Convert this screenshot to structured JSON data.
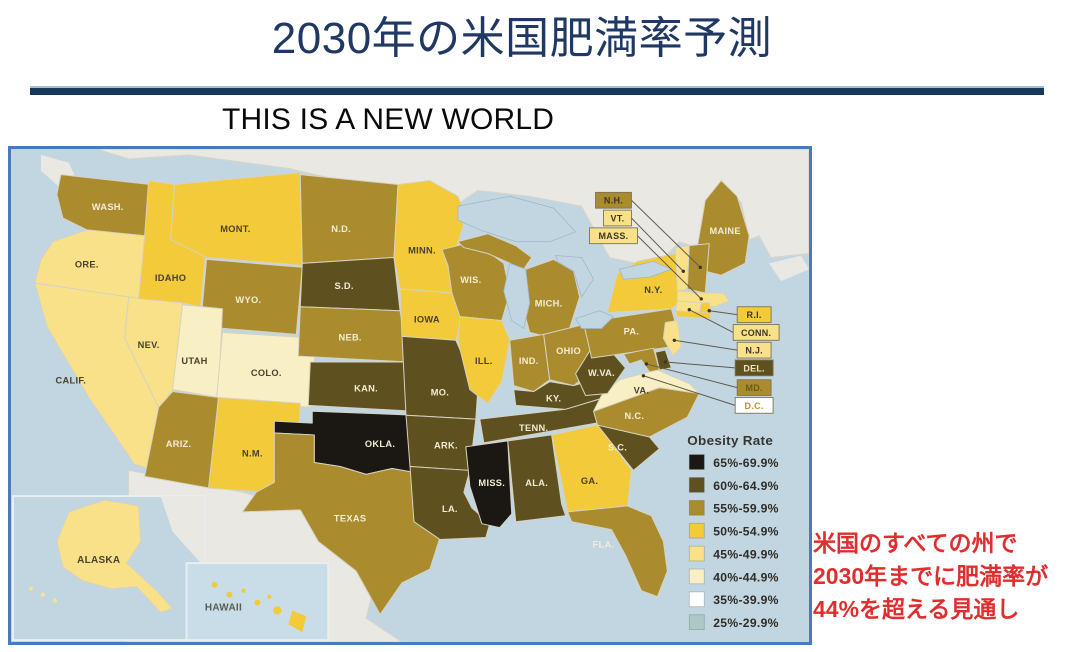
{
  "slide": {
    "title": "2030年の米国肥満率予測",
    "subtitle": "THIS IS A NEW WORLD",
    "title_color": "#1f3864",
    "rule_color": "#17375e",
    "annotation_color": "#e02e2e",
    "annotation_lines": [
      "米国のすべての州で",
      "2030年までに肥満率が",
      "44%を超える見通し"
    ]
  },
  "map": {
    "frame_color": "#4b79c0",
    "water_color": "#c2d6e2",
    "land_color": "#e9e8e3",
    "legend": {
      "title": "Obesity Rate",
      "entries": [
        {
          "key": "b65",
          "label": "65%-69.9%",
          "color": "#1b1712"
        },
        {
          "key": "b60",
          "label": "60%-64.9%",
          "color": "#5f5020"
        },
        {
          "key": "b55",
          "label": "55%-59.9%",
          "color": "#aa8c2e"
        },
        {
          "key": "b50",
          "label": "50%-54.9%",
          "color": "#f3ca3a"
        },
        {
          "key": "b45",
          "label": "45%-49.9%",
          "color": "#f9e189"
        },
        {
          "key": "b40",
          "label": "40%-44.9%",
          "color": "#f9efc5"
        },
        {
          "key": "b35",
          "label": "35%-39.9%",
          "color": "#ffffff"
        },
        {
          "key": "b25",
          "label": "25%-29.9%",
          "color": "#adc9c5"
        }
      ]
    },
    "states": [
      {
        "id": "WA",
        "label": "WASH.",
        "bucket": "b55"
      },
      {
        "id": "OR",
        "label": "ORE.",
        "bucket": "b45"
      },
      {
        "id": "CA",
        "label": "CALIF.",
        "bucket": "b45"
      },
      {
        "id": "NV",
        "label": "NEV.",
        "bucket": "b45"
      },
      {
        "id": "ID",
        "label": "IDAHO",
        "bucket": "b50"
      },
      {
        "id": "MT",
        "label": "MONT.",
        "bucket": "b50"
      },
      {
        "id": "WY",
        "label": "WYO.",
        "bucket": "b55"
      },
      {
        "id": "UT",
        "label": "UTAH",
        "bucket": "b40"
      },
      {
        "id": "CO",
        "label": "COLO.",
        "bucket": "b40"
      },
      {
        "id": "AZ",
        "label": "ARIZ.",
        "bucket": "b55"
      },
      {
        "id": "NM",
        "label": "N.M.",
        "bucket": "b50"
      },
      {
        "id": "ND",
        "label": "N.D.",
        "bucket": "b55"
      },
      {
        "id": "SD",
        "label": "S.D.",
        "bucket": "b60"
      },
      {
        "id": "NE",
        "label": "NEB.",
        "bucket": "b55"
      },
      {
        "id": "KS",
        "label": "KAN.",
        "bucket": "b60"
      },
      {
        "id": "OK",
        "label": "OKLA.",
        "bucket": "b65"
      },
      {
        "id": "TX",
        "label": "TEXAS",
        "bucket": "b55"
      },
      {
        "id": "MN",
        "label": "MINN.",
        "bucket": "b50"
      },
      {
        "id": "IA",
        "label": "IOWA",
        "bucket": "b50"
      },
      {
        "id": "MO",
        "label": "MO.",
        "bucket": "b60"
      },
      {
        "id": "AR",
        "label": "ARK.",
        "bucket": "b60"
      },
      {
        "id": "LA",
        "label": "LA.",
        "bucket": "b60"
      },
      {
        "id": "WI",
        "label": "WIS.",
        "bucket": "b55"
      },
      {
        "id": "IL",
        "label": "ILL.",
        "bucket": "b50"
      },
      {
        "id": "MI",
        "label": "MICH.",
        "bucket": "b55"
      },
      {
        "id": "IN",
        "label": "IND.",
        "bucket": "b55"
      },
      {
        "id": "OH",
        "label": "OHIO",
        "bucket": "b55"
      },
      {
        "id": "KY",
        "label": "KY.",
        "bucket": "b60"
      },
      {
        "id": "TN",
        "label": "TENN.",
        "bucket": "b60"
      },
      {
        "id": "MS",
        "label": "MISS.",
        "bucket": "b65"
      },
      {
        "id": "AL",
        "label": "ALA.",
        "bucket": "b60"
      },
      {
        "id": "GA",
        "label": "GA.",
        "bucket": "b50"
      },
      {
        "id": "FL",
        "label": "FLA.",
        "bucket": "b55"
      },
      {
        "id": "SC",
        "label": "S.C.",
        "bucket": "b60"
      },
      {
        "id": "NC",
        "label": "N.C.",
        "bucket": "b55"
      },
      {
        "id": "VA",
        "label": "VA.",
        "bucket": "b40"
      },
      {
        "id": "WV",
        "label": "W.VA.",
        "bucket": "b60"
      },
      {
        "id": "PA",
        "label": "PA.",
        "bucket": "b55"
      },
      {
        "id": "NY",
        "label": "N.Y.",
        "bucket": "b50"
      },
      {
        "id": "ME",
        "label": "MAINE",
        "bucket": "b55"
      },
      {
        "id": "VT",
        "label": "",
        "bucket": "b45"
      },
      {
        "id": "NH",
        "label": "",
        "bucket": "b55"
      },
      {
        "id": "MA",
        "label": "",
        "bucket": "b45"
      },
      {
        "id": "CT",
        "label": "",
        "bucket": "b45"
      },
      {
        "id": "RI",
        "label": "",
        "bucket": "b50"
      },
      {
        "id": "NJ",
        "label": "",
        "bucket": "b45"
      },
      {
        "id": "DE",
        "label": "",
        "bucket": "b60"
      },
      {
        "id": "MD",
        "label": "",
        "bucket": "b55"
      }
    ],
    "callouts": [
      {
        "id": "NH",
        "label": "N.H.",
        "bucket": "b55"
      },
      {
        "id": "VT",
        "label": "VT.",
        "bucket": "b45"
      },
      {
        "id": "MA",
        "label": "MASS.",
        "bucket": "b45"
      },
      {
        "id": "RI",
        "label": "R.I.",
        "bucket": "b50"
      },
      {
        "id": "CT",
        "label": "CONN.",
        "bucket": "b45"
      },
      {
        "id": "NJ",
        "label": "N.J.",
        "bucket": "b45"
      },
      {
        "id": "DE",
        "label": "DEL.",
        "bucket": "b60"
      },
      {
        "id": "MD",
        "label": "MD.",
        "bucket": "b55"
      },
      {
        "id": "DC",
        "label": "D.C.",
        "bucket": "b35"
      }
    ],
    "insets": [
      {
        "id": "AK",
        "label": "ALASKA",
        "bucket": "b45"
      },
      {
        "id": "HI",
        "label": "HAWAII",
        "bucket": "b50"
      }
    ]
  }
}
